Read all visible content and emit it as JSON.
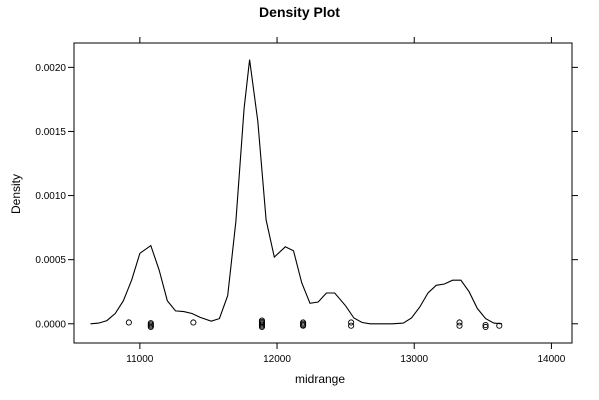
{
  "chart_data": {
    "type": "line",
    "title": "Density Plot",
    "xlabel": "midrange",
    "ylabel": "Density",
    "xlim": [
      10520,
      14150
    ],
    "ylim": [
      -0.00015,
      0.00219
    ],
    "xticks": [
      11000,
      12000,
      13000,
      14000
    ],
    "xtick_labels": [
      "11000",
      "12000",
      "13000",
      "14000"
    ],
    "yticks": [
      0.0,
      0.0005,
      0.001,
      0.0015,
      0.002
    ],
    "ytick_labels": [
      "0.0000",
      "0.0005",
      "0.0010",
      "0.0015",
      "0.0020"
    ],
    "grid": false,
    "legend": "none",
    "series": [
      {
        "line": [
          [
            10640,
            0.0
          ],
          [
            10700,
            5e-06
          ],
          [
            10760,
            2.5e-05
          ],
          [
            10820,
            8e-05
          ],
          [
            10880,
            0.00018
          ],
          [
            10940,
            0.00034
          ],
          [
            11000,
            0.00055
          ],
          [
            11080,
            0.00061
          ],
          [
            11140,
            0.00042
          ],
          [
            11200,
            0.00018
          ],
          [
            11260,
            0.0001
          ],
          [
            11320,
            9.5e-05
          ],
          [
            11380,
            8e-05
          ],
          [
            11440,
            5e-05
          ],
          [
            11520,
            2e-05
          ],
          [
            11580,
            4e-05
          ],
          [
            11640,
            0.00022
          ],
          [
            11700,
            0.0008
          ],
          [
            11760,
            0.00168
          ],
          [
            11800,
            0.00206
          ],
          [
            11860,
            0.00158
          ],
          [
            11920,
            0.00081
          ],
          [
            11980,
            0.00052
          ],
          [
            12060,
            0.0006
          ],
          [
            12120,
            0.00057
          ],
          [
            12180,
            0.00032
          ],
          [
            12240,
            0.00016
          ],
          [
            12300,
            0.00017
          ],
          [
            12360,
            0.00024
          ],
          [
            12420,
            0.00024
          ],
          [
            12500,
            0.00014
          ],
          [
            12560,
            4.5e-05
          ],
          [
            12620,
            1e-05
          ],
          [
            12680,
            0.0
          ],
          [
            12760,
            0.0
          ],
          [
            12840,
            0.0
          ],
          [
            12920,
            5e-06
          ],
          [
            12980,
            4.5e-05
          ],
          [
            13040,
            0.00013
          ],
          [
            13100,
            0.00024
          ],
          [
            13160,
            0.0003
          ],
          [
            13220,
            0.00031
          ],
          [
            13280,
            0.00034
          ],
          [
            13340,
            0.00034
          ],
          [
            13400,
            0.00025
          ],
          [
            13460,
            0.00012
          ],
          [
            13520,
            4e-05
          ],
          [
            13580,
            5e-06
          ],
          [
            13640,
            0.0
          ]
        ],
        "rug": [
          [
            10920,
            1e-05
          ],
          [
            11080,
            5e-06
          ],
          [
            11080,
            -5e-06
          ],
          [
            11080,
            -1.5e-05
          ],
          [
            11080,
            -2.5e-05
          ],
          [
            11390,
            1e-05
          ],
          [
            11890,
            2.5e-05
          ],
          [
            11890,
            1.5e-05
          ],
          [
            11890,
            5e-06
          ],
          [
            11890,
            -5e-06
          ],
          [
            11890,
            -1.5e-05
          ],
          [
            11890,
            -2.5e-05
          ],
          [
            12190,
            1e-05
          ],
          [
            12190,
            0.0
          ],
          [
            12190,
            -1e-05
          ],
          [
            12190,
            -1.5e-05
          ],
          [
            12540,
            1e-05
          ],
          [
            12540,
            -1.5e-05
          ],
          [
            13330,
            1e-05
          ],
          [
            13330,
            -1.5e-05
          ],
          [
            13520,
            -1e-05
          ],
          [
            13520,
            -2.5e-05
          ],
          [
            13620,
            -1.5e-05
          ]
        ]
      }
    ]
  }
}
